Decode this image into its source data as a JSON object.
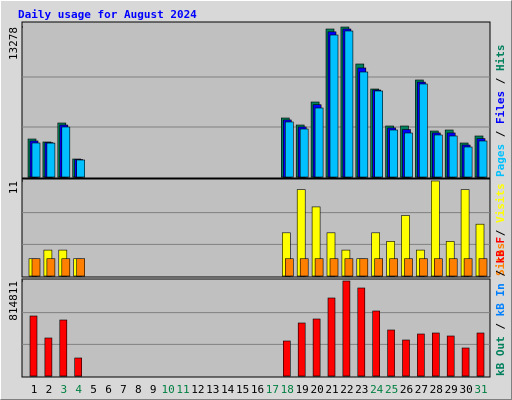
{
  "chart_data": [
    {
      "type": "bar",
      "title": "Daily usage for August 2024",
      "categories": [
        "1",
        "2",
        "3",
        "4",
        "5",
        "6",
        "7",
        "8",
        "9",
        "10",
        "11",
        "12",
        "13",
        "14",
        "15",
        "16",
        "17",
        "18",
        "19",
        "20",
        "21",
        "22",
        "23",
        "24",
        "25",
        "26",
        "27",
        "28",
        "29",
        "30",
        "31"
      ],
      "highlight_days": [
        3,
        4,
        10,
        11,
        17,
        18,
        24,
        25,
        31
      ],
      "highlight_color": "#008040",
      "legend_separator": " / ",
      "ylim": [
        0,
        13278
      ],
      "yticks": [
        13278
      ],
      "grid_divisions": 3,
      "series": [
        {
          "name": "Hits",
          "color": "#00805c",
          "values": [
            3364,
            3100,
            4780,
            1593,
            0,
            0,
            0,
            0,
            0,
            0,
            0,
            0,
            0,
            0,
            0,
            0,
            0,
            5223,
            4603,
            6639,
            13101,
            13278,
            10003,
            7790,
            4515,
            4515,
            8587,
            4072,
            4160,
            3010,
            3630
          ]
        },
        {
          "name": "Files",
          "color": "#0000ff",
          "values": [
            3187,
            3050,
            4600,
            1550,
            0,
            0,
            0,
            0,
            0,
            0,
            0,
            0,
            0,
            0,
            0,
            0,
            0,
            5050,
            4430,
            6400,
            12850,
            13100,
            9650,
            7700,
            4340,
            4200,
            8400,
            3900,
            3900,
            2830,
            3400
          ]
        },
        {
          "name": "Pages",
          "color": "#00c0ff",
          "values": [
            3010,
            3000,
            4426,
            1505,
            0,
            0,
            0,
            0,
            0,
            0,
            0,
            0,
            0,
            0,
            0,
            0,
            0,
            4870,
            4249,
            6108,
            12570,
            12924,
            9295,
            7613,
            4160,
            3895,
            8233,
            3718,
            3630,
            2656,
            3187
          ]
        }
      ]
    },
    {
      "type": "bar",
      "ylim": [
        0,
        11
      ],
      "yticks": [
        11
      ],
      "grid_divisions": 3,
      "series": [
        {
          "name": "Visits",
          "color": "#ffff00",
          "values": [
            2,
            3,
            3,
            2,
            0,
            0,
            0,
            0,
            0,
            0,
            0,
            0,
            0,
            0,
            0,
            0,
            0,
            5,
            10,
            8,
            5,
            3,
            2,
            5,
            4,
            7,
            3,
            11,
            4,
            10,
            6
          ]
        },
        {
          "name": "Sites",
          "color": "#ff8000",
          "values": [
            2,
            2,
            2,
            2,
            0,
            0,
            0,
            0,
            0,
            0,
            0,
            0,
            0,
            0,
            0,
            0,
            0,
            2,
            2,
            2,
            2,
            2,
            2,
            2,
            2,
            2,
            2,
            2,
            2,
            2,
            2
          ]
        }
      ]
    },
    {
      "type": "bar",
      "ylim": [
        0,
        814811
      ],
      "yticks": [
        814811
      ],
      "grid_divisions": 3,
      "series": [
        {
          "name": "kB F",
          "color": "#ff0000",
          "values": [
            514618,
            325924,
            480309,
            154385,
            0,
            0,
            0,
            0,
            0,
            0,
            0,
            0,
            0,
            0,
            0,
            0,
            0,
            300193,
            454578,
            488887,
            669003,
            814811,
            754762,
            557502,
            394539,
            308770,
            360232,
            368810,
            343078,
            240155,
            368810
          ]
        },
        {
          "name": "kB In",
          "color": "#0080ff",
          "values": [
            0,
            0,
            0,
            0,
            0,
            0,
            0,
            0,
            0,
            0,
            0,
            0,
            0,
            0,
            0,
            0,
            0,
            0,
            0,
            0,
            0,
            0,
            0,
            0,
            0,
            0,
            0,
            0,
            0,
            0,
            0
          ]
        },
        {
          "name": "kB Out",
          "color": "#00805c",
          "values": [
            0,
            0,
            0,
            0,
            0,
            0,
            0,
            0,
            0,
            0,
            0,
            0,
            0,
            0,
            0,
            0,
            0,
            0,
            0,
            0,
            0,
            0,
            0,
            0,
            0,
            0,
            0,
            0,
            0,
            0,
            0
          ]
        }
      ]
    }
  ]
}
